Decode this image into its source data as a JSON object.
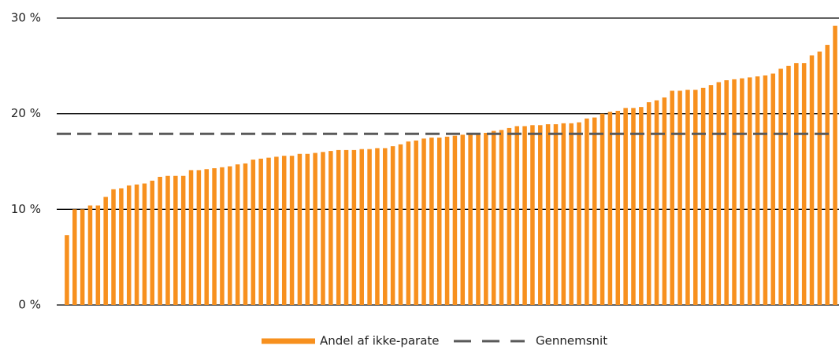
{
  "chart_data": {
    "type": "bar",
    "categories": [
      null,
      null,
      null,
      null,
      null,
      null,
      null,
      null,
      null,
      null,
      null,
      null,
      null,
      null,
      null,
      null,
      null,
      null,
      null,
      null,
      null,
      null,
      null,
      null,
      null,
      null,
      null,
      null,
      null,
      null,
      null,
      null,
      null,
      null,
      null,
      null,
      null,
      null,
      null,
      null,
      null,
      null,
      null,
      null,
      null,
      null,
      null,
      null,
      null,
      null,
      null,
      null,
      null,
      null,
      null,
      null,
      null,
      null,
      null,
      null,
      null,
      null,
      null,
      null,
      null,
      null,
      null,
      null,
      null,
      null,
      null,
      null,
      null,
      null,
      null,
      null,
      null,
      null,
      null,
      null,
      null,
      null,
      null,
      null,
      null,
      null,
      null,
      null,
      null,
      null,
      null,
      null,
      null,
      null,
      null,
      null,
      null,
      null,
      null,
      null
    ],
    "series": [
      {
        "name": "Andel af ikke-parate",
        "color": "#f7901e",
        "values": [
          7.3,
          10.0,
          10.0,
          10.4,
          10.4,
          11.3,
          12.1,
          12.2,
          12.5,
          12.6,
          12.7,
          13.0,
          13.4,
          13.5,
          13.5,
          13.5,
          14.1,
          14.1,
          14.2,
          14.3,
          14.4,
          14.5,
          14.7,
          14.8,
          15.2,
          15.3,
          15.4,
          15.5,
          15.6,
          15.6,
          15.8,
          15.8,
          15.9,
          16.0,
          16.1,
          16.2,
          16.2,
          16.2,
          16.3,
          16.3,
          16.4,
          16.4,
          16.6,
          16.8,
          17.1,
          17.2,
          17.4,
          17.5,
          17.5,
          17.6,
          17.7,
          17.8,
          17.9,
          18.0,
          18.0,
          18.2,
          18.3,
          18.5,
          18.7,
          18.7,
          18.8,
          18.8,
          18.9,
          18.9,
          19.0,
          19.0,
          19.1,
          19.5,
          19.6,
          20.0,
          20.2,
          20.3,
          20.6,
          20.6,
          20.7,
          21.2,
          21.4,
          21.7,
          22.4,
          22.4,
          22.5,
          22.5,
          22.7,
          23.0,
          23.3,
          23.5,
          23.6,
          23.7,
          23.8,
          23.9,
          24.0,
          24.2,
          24.7,
          25.0,
          25.3,
          25.3,
          26.1,
          26.5,
          27.2,
          29.2
        ]
      }
    ],
    "reference_line": {
      "name": "Gennemsnit",
      "value": 17.9,
      "color": "#595959",
      "style": "dashed"
    },
    "ylim": [
      0,
      30
    ],
    "yticks": [
      {
        "value": 0,
        "label": "0 %"
      },
      {
        "value": 10,
        "label": "10 %"
      },
      {
        "value": 20,
        "label": "20 %"
      },
      {
        "value": 30,
        "label": "30 %"
      }
    ],
    "grid": true,
    "legend": "bottom"
  }
}
